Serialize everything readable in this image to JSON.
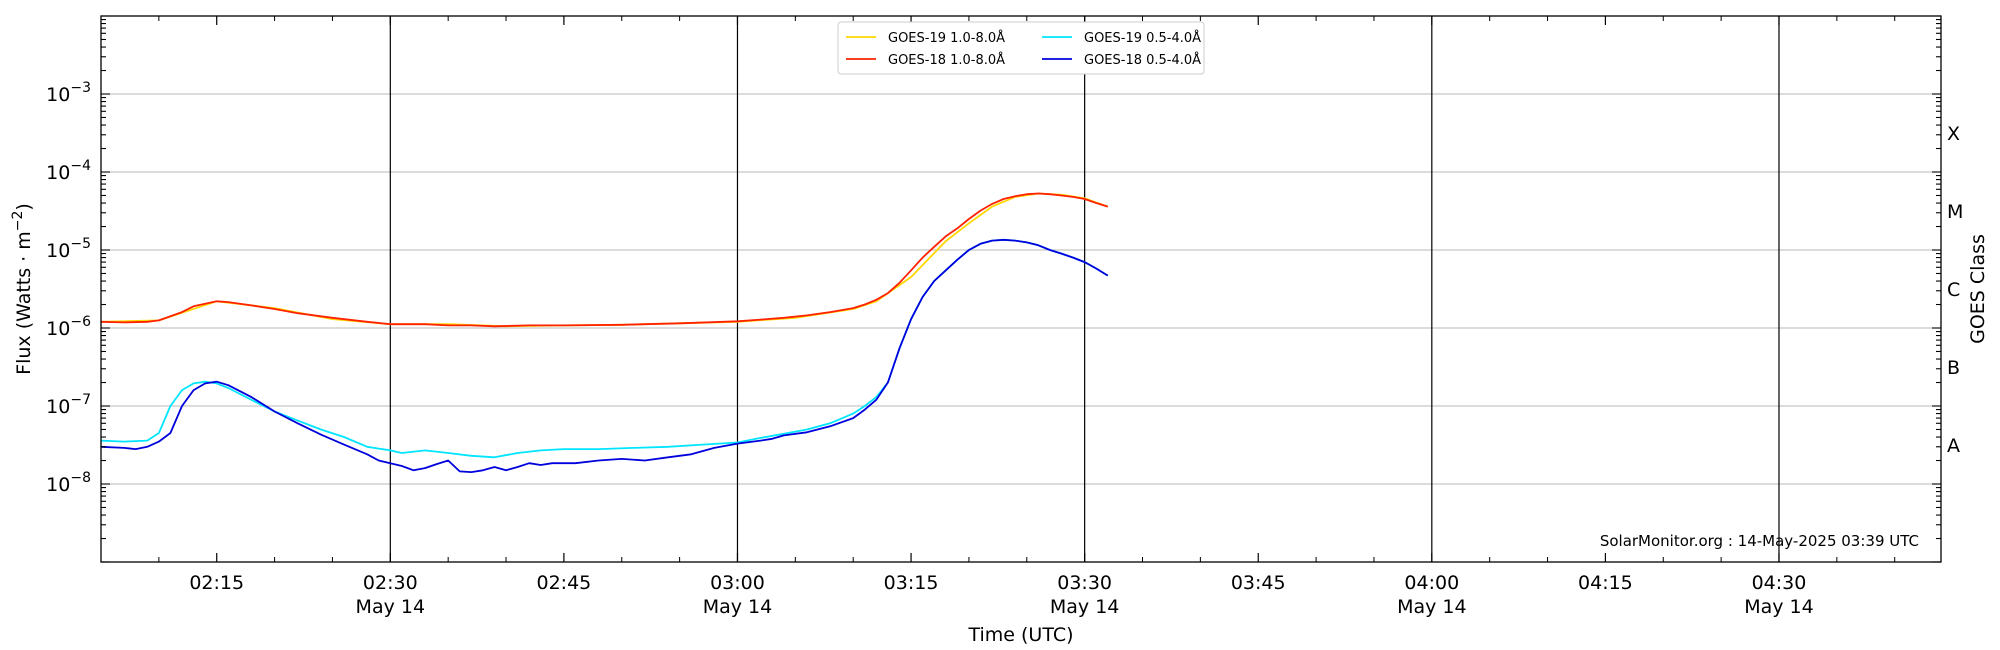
{
  "chart_data": {
    "type": "line",
    "xlabel": "Time (UTC)",
    "ylabel": "Flux (Watts · m⁻²)",
    "y2label": "GOES Class",
    "yscale": "log",
    "ylim": [
      1e-09,
      0.01
    ],
    "xlim": [
      "02:05",
      "04:44"
    ],
    "grid": "horizontal at y decades",
    "legend_position": "top-center",
    "watermark": "SolarMonitor.org : 14-May-2025 03:39 UTC",
    "x_ticks": [
      {
        "time": "02:15",
        "label": "02:15",
        "date": ""
      },
      {
        "time": "02:30",
        "label": "02:30",
        "date": "May 14"
      },
      {
        "time": "02:45",
        "label": "02:45",
        "date": ""
      },
      {
        "time": "03:00",
        "label": "03:00",
        "date": "May 14"
      },
      {
        "time": "03:15",
        "label": "03:15",
        "date": ""
      },
      {
        "time": "03:30",
        "label": "03:30",
        "date": "May 14"
      },
      {
        "time": "03:45",
        "label": "03:45",
        "date": ""
      },
      {
        "time": "04:00",
        "label": "04:00",
        "date": "May 14"
      },
      {
        "time": "04:15",
        "label": "04:15",
        "date": ""
      },
      {
        "time": "04:30",
        "label": "04:30",
        "date": "May 14"
      }
    ],
    "vlines": [
      "02:30",
      "03:00",
      "03:30",
      "04:00",
      "04:30"
    ],
    "y_ticks": [
      {
        "value": 1e-08,
        "exp": "-8"
      },
      {
        "value": 1e-07,
        "exp": "-7"
      },
      {
        "value": 1e-06,
        "exp": "-6"
      },
      {
        "value": 1e-05,
        "exp": "-5"
      },
      {
        "value": 0.0001,
        "exp": "-4"
      },
      {
        "value": 0.001,
        "exp": "-3"
      }
    ],
    "goes_classes": [
      {
        "label": "A",
        "value": 3.16e-08
      },
      {
        "label": "B",
        "value": 3.16e-07
      },
      {
        "label": "C",
        "value": 3.16e-06
      },
      {
        "label": "M",
        "value": 3.16e-05
      },
      {
        "label": "X",
        "value": 0.000316
      }
    ],
    "series": [
      {
        "name": "GOES-19 1.0-8.0Å",
        "color": "#ffd700",
        "points": [
          [
            "02:05",
            1.2e-06
          ],
          [
            "02:10",
            1.25e-06
          ],
          [
            "02:15",
            2.2e-06
          ],
          [
            "02:20",
            1.8e-06
          ],
          [
            "02:25",
            1.3e-06
          ],
          [
            "02:30",
            1.12e-06
          ],
          [
            "02:35",
            1.12e-06
          ],
          [
            "02:40",
            1.05e-06
          ],
          [
            "02:45",
            1.08e-06
          ],
          [
            "02:50",
            1.1e-06
          ],
          [
            "02:55",
            1.15e-06
          ],
          [
            "03:00",
            1.2e-06
          ],
          [
            "03:05",
            1.35e-06
          ],
          [
            "03:10",
            1.75e-06
          ],
          [
            "03:12",
            2.2e-06
          ],
          [
            "03:15",
            4.5e-06
          ],
          [
            "03:18",
            1.3e-05
          ],
          [
            "03:20",
            2.2e-05
          ],
          [
            "03:22",
            3.6e-05
          ],
          [
            "03:24",
            4.8e-05
          ],
          [
            "03:26",
            5.3e-05
          ],
          [
            "03:28",
            5.1e-05
          ],
          [
            "03:30",
            4.6e-05
          ],
          [
            "03:32",
            3.6e-05
          ]
        ]
      },
      {
        "name": "GOES-18 1.0-8.0Å",
        "color": "#ff2200",
        "points": [
          [
            "02:05",
            1.2e-06
          ],
          [
            "02:07",
            1.18e-06
          ],
          [
            "02:09",
            1.2e-06
          ],
          [
            "02:10",
            1.25e-06
          ],
          [
            "02:12",
            1.6e-06
          ],
          [
            "02:13",
            1.9e-06
          ],
          [
            "02:15",
            2.2e-06
          ],
          [
            "02:16",
            2.15e-06
          ],
          [
            "02:18",
            1.95e-06
          ],
          [
            "02:20",
            1.75e-06
          ],
          [
            "02:22",
            1.55e-06
          ],
          [
            "02:25",
            1.35e-06
          ],
          [
            "02:28",
            1.2e-06
          ],
          [
            "02:30",
            1.12e-06
          ],
          [
            "02:33",
            1.12e-06
          ],
          [
            "02:35",
            1.08e-06
          ],
          [
            "02:37",
            1.08e-06
          ],
          [
            "02:39",
            1.05e-06
          ],
          [
            "02:42",
            1.08e-06
          ],
          [
            "02:45",
            1.08e-06
          ],
          [
            "02:50",
            1.1e-06
          ],
          [
            "02:55",
            1.15e-06
          ],
          [
            "03:00",
            1.22e-06
          ],
          [
            "03:02",
            1.28e-06
          ],
          [
            "03:04",
            1.35e-06
          ],
          [
            "03:06",
            1.45e-06
          ],
          [
            "03:08",
            1.6e-06
          ],
          [
            "03:10",
            1.8e-06
          ],
          [
            "03:11",
            2e-06
          ],
          [
            "03:12",
            2.3e-06
          ],
          [
            "03:13",
            2.8e-06
          ],
          [
            "03:14",
            3.8e-06
          ],
          [
            "03:15",
            5.5e-06
          ],
          [
            "03:16",
            8e-06
          ],
          [
            "03:17",
            1.1e-05
          ],
          [
            "03:18",
            1.5e-05
          ],
          [
            "03:19",
            1.9e-05
          ],
          [
            "03:20",
            2.5e-05
          ],
          [
            "03:21",
            3.2e-05
          ],
          [
            "03:22",
            3.9e-05
          ],
          [
            "03:23",
            4.5e-05
          ],
          [
            "03:24",
            4.9e-05
          ],
          [
            "03:25",
            5.2e-05
          ],
          [
            "03:26",
            5.3e-05
          ],
          [
            "03:27",
            5.2e-05
          ],
          [
            "03:28",
            5e-05
          ],
          [
            "03:29",
            4.8e-05
          ],
          [
            "03:30",
            4.5e-05
          ],
          [
            "03:31",
            4e-05
          ],
          [
            "03:32",
            3.6e-05
          ]
        ]
      },
      {
        "name": "GOES-19 0.5-4.0Å",
        "color": "#00e5ff",
        "points": [
          [
            "02:05",
            3.6e-08
          ],
          [
            "02:07",
            3.5e-08
          ],
          [
            "02:09",
            3.6e-08
          ],
          [
            "02:10",
            4.5e-08
          ],
          [
            "02:11",
            1e-07
          ],
          [
            "02:12",
            1.6e-07
          ],
          [
            "02:13",
            1.95e-07
          ],
          [
            "02:14",
            2.05e-07
          ],
          [
            "02:15",
            1.95e-07
          ],
          [
            "02:16",
            1.7e-07
          ],
          [
            "02:18",
            1.2e-07
          ],
          [
            "02:20",
            8.5e-08
          ],
          [
            "02:22",
            6.5e-08
          ],
          [
            "02:24",
            5e-08
          ],
          [
            "02:26",
            4e-08
          ],
          [
            "02:28",
            3e-08
          ],
          [
            "02:30",
            2.7e-08
          ],
          [
            "02:31",
            2.5e-08
          ],
          [
            "02:33",
            2.7e-08
          ],
          [
            "02:35",
            2.5e-08
          ],
          [
            "02:37",
            2.3e-08
          ],
          [
            "02:39",
            2.2e-08
          ],
          [
            "02:41",
            2.5e-08
          ],
          [
            "02:43",
            2.7e-08
          ],
          [
            "02:45",
            2.8e-08
          ],
          [
            "02:48",
            2.8e-08
          ],
          [
            "02:51",
            2.9e-08
          ],
          [
            "02:54",
            3e-08
          ],
          [
            "02:57",
            3.2e-08
          ],
          [
            "03:00",
            3.4e-08
          ],
          [
            "03:02",
            3.9e-08
          ],
          [
            "03:04",
            4.4e-08
          ],
          [
            "03:06",
            5e-08
          ],
          [
            "03:08",
            6e-08
          ],
          [
            "03:10",
            8e-08
          ],
          [
            "03:11",
            1e-07
          ],
          [
            "03:12",
            1.3e-07
          ],
          [
            "03:13",
            2e-07
          ],
          [
            "03:14",
            5.5e-07
          ],
          [
            "03:15",
            1.3e-06
          ],
          [
            "03:16",
            2.5e-06
          ],
          [
            "03:17",
            4e-06
          ],
          [
            "03:18",
            5.5e-06
          ],
          [
            "03:19",
            7.5e-06
          ],
          [
            "03:20",
            1e-05
          ],
          [
            "03:21",
            1.2e-05
          ],
          [
            "03:22",
            1.32e-05
          ],
          [
            "03:23",
            1.35e-05
          ],
          [
            "03:24",
            1.32e-05
          ],
          [
            "03:25",
            1.25e-05
          ],
          [
            "03:26",
            1.15e-05
          ],
          [
            "03:27",
            1e-05
          ],
          [
            "03:28",
            9e-06
          ],
          [
            "03:29",
            8e-06
          ],
          [
            "03:30",
            7e-06
          ],
          [
            "03:31",
            5.8e-06
          ],
          [
            "03:32",
            4.7e-06
          ]
        ]
      },
      {
        "name": "GOES-18 0.5-4.0Å",
        "color": "#0000dd",
        "points": [
          [
            "02:05",
            3e-08
          ],
          [
            "02:07",
            2.9e-08
          ],
          [
            "02:08",
            2.8e-08
          ],
          [
            "02:09",
            3e-08
          ],
          [
            "02:10",
            3.5e-08
          ],
          [
            "02:11",
            4.5e-08
          ],
          [
            "02:12",
            1e-07
          ],
          [
            "02:13",
            1.6e-07
          ],
          [
            "02:14",
            1.95e-07
          ],
          [
            "02:15",
            2.05e-07
          ],
          [
            "02:16",
            1.85e-07
          ],
          [
            "02:18",
            1.3e-07
          ],
          [
            "02:20",
            8.5e-08
          ],
          [
            "02:22",
            6e-08
          ],
          [
            "02:24",
            4.3e-08
          ],
          [
            "02:26",
            3.2e-08
          ],
          [
            "02:28",
            2.4e-08
          ],
          [
            "02:29",
            2e-08
          ],
          [
            "02:31",
            1.7e-08
          ],
          [
            "02:32",
            1.5e-08
          ],
          [
            "02:33",
            1.6e-08
          ],
          [
            "02:34",
            1.8e-08
          ],
          [
            "02:35",
            2e-08
          ],
          [
            "02:36",
            1.45e-08
          ],
          [
            "02:37",
            1.42e-08
          ],
          [
            "02:38",
            1.5e-08
          ],
          [
            "02:39",
            1.65e-08
          ],
          [
            "02:40",
            1.5e-08
          ],
          [
            "02:41",
            1.65e-08
          ],
          [
            "02:42",
            1.85e-08
          ],
          [
            "02:43",
            1.75e-08
          ],
          [
            "02:44",
            1.85e-08
          ],
          [
            "02:46",
            1.85e-08
          ],
          [
            "02:48",
            2e-08
          ],
          [
            "02:50",
            2.1e-08
          ],
          [
            "02:52",
            2e-08
          ],
          [
            "02:54",
            2.2e-08
          ],
          [
            "02:56",
            2.4e-08
          ],
          [
            "02:58",
            2.9e-08
          ],
          [
            "03:00",
            3.3e-08
          ],
          [
            "03:02",
            3.6e-08
          ],
          [
            "03:03",
            3.8e-08
          ],
          [
            "03:04",
            4.2e-08
          ],
          [
            "03:06",
            4.6e-08
          ],
          [
            "03:08",
            5.5e-08
          ],
          [
            "03:10",
            7e-08
          ],
          [
            "03:11",
            9e-08
          ],
          [
            "03:12",
            1.2e-07
          ],
          [
            "03:13",
            2e-07
          ],
          [
            "03:14",
            5.5e-07
          ],
          [
            "03:15",
            1.3e-06
          ],
          [
            "03:16",
            2.5e-06
          ],
          [
            "03:17",
            4e-06
          ],
          [
            "03:18",
            5.5e-06
          ],
          [
            "03:19",
            7.5e-06
          ],
          [
            "03:20",
            1e-05
          ],
          [
            "03:21",
            1.2e-05
          ],
          [
            "03:22",
            1.32e-05
          ],
          [
            "03:23",
            1.35e-05
          ],
          [
            "03:24",
            1.32e-05
          ],
          [
            "03:25",
            1.25e-05
          ],
          [
            "03:26",
            1.15e-05
          ],
          [
            "03:27",
            1e-05
          ],
          [
            "03:28",
            9e-06
          ],
          [
            "03:29",
            8e-06
          ],
          [
            "03:30",
            7e-06
          ],
          [
            "03:31",
            5.8e-06
          ],
          [
            "03:32",
            4.7e-06
          ]
        ]
      }
    ]
  }
}
